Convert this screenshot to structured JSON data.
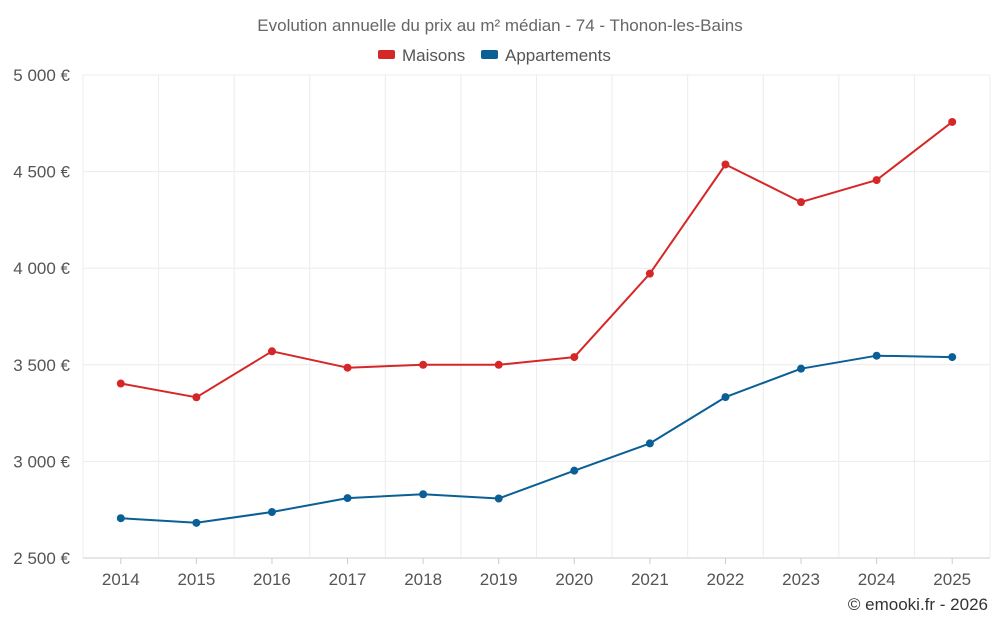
{
  "chart_data": {
    "type": "line",
    "title": "Evolution annuelle du prix au m² médian - 74 - Thonon-les-Bains",
    "categories": [
      "2014",
      "2015",
      "2016",
      "2017",
      "2018",
      "2019",
      "2020",
      "2021",
      "2022",
      "2023",
      "2024",
      "2025"
    ],
    "series": [
      {
        "name": "Maisons",
        "color": "#d62728",
        "values": [
          3403,
          3332,
          3570,
          3485,
          3500,
          3500,
          3540,
          3972,
          4537,
          4342,
          4456,
          4757
        ]
      },
      {
        "name": "Appartements",
        "color": "#0a5f96",
        "values": [
          2706,
          2682,
          2738,
          2810,
          2830,
          2808,
          2952,
          3093,
          3333,
          3480,
          3547,
          3540
        ]
      }
    ],
    "ylim": [
      2500,
      5000
    ],
    "yticks": [
      2500,
      3000,
      3500,
      4000,
      4500,
      5000
    ],
    "ytick_labels": [
      "2 500 €",
      "3 000 €",
      "3 500 €",
      "4 000 €",
      "4 500 €",
      "5 000 €"
    ],
    "xlabel": "",
    "ylabel": "",
    "grid": true,
    "legend_position": "top-center"
  },
  "credit": "© emooki.fr - 2026"
}
